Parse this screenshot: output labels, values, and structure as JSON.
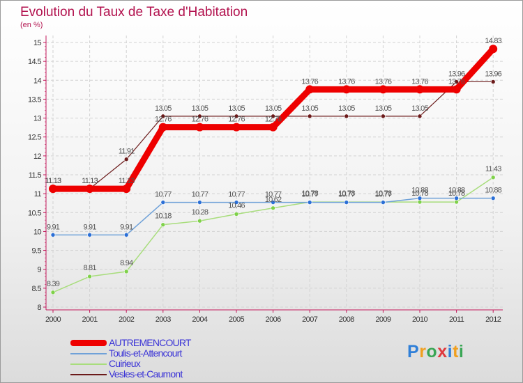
{
  "title": "Evolution du Taux de Taxe d'Habitation",
  "unit": "(en %)",
  "logo": {
    "chars": [
      "P",
      "r",
      "o",
      "x",
      "i",
      "t",
      "i"
    ],
    "colors": [
      "#2f7fd8",
      "#f0a020",
      "#3aa655",
      "#e0393e",
      "#2f7fd8",
      "#f0a020",
      "#3aa655"
    ]
  },
  "chart_data": {
    "type": "line",
    "title": "Evolution du Taux de Taxe d'Habitation",
    "ylabel": "(en %)",
    "xlabel": "",
    "x": [
      "2000",
      "2001",
      "2002",
      "2003",
      "2004",
      "2005",
      "2006",
      "2007",
      "2008",
      "2009",
      "2010",
      "2011",
      "2012"
    ],
    "ylim": [
      8,
      15
    ],
    "yticks": [
      "8",
      "8.5",
      "9",
      "9.5",
      "10",
      "10.5",
      "11",
      "11.5",
      "12",
      "12.5",
      "13",
      "13.5",
      "14",
      "14.5",
      "15"
    ],
    "legend_position": "bottom-left",
    "series": [
      {
        "name": "Vesles-et-Caumont",
        "color": "#6b1a1a",
        "values": [
          11.13,
          11.13,
          11.91,
          13.05,
          13.05,
          13.05,
          13.05,
          13.05,
          13.05,
          13.05,
          13.05,
          13.96,
          13.96
        ],
        "labels": [
          "11.13",
          "11.13",
          "11.91",
          "13.05",
          "13.05",
          "13.05",
          "13.05",
          "13.05",
          "13.05",
          "13.05",
          "13.05",
          "13.96",
          "13.96"
        ]
      },
      {
        "name": "Cuirieux",
        "color": "#a8dd7c",
        "values": [
          8.39,
          8.81,
          8.94,
          10.18,
          10.28,
          10.46,
          10.62,
          10.78,
          10.78,
          10.78,
          10.78,
          10.78,
          11.43
        ],
        "labels": [
          "8.39",
          "8.81",
          "8.94",
          "10.18",
          "10.28",
          "10.46",
          "10.62",
          "10.78",
          "10.78",
          "10.78",
          "10.78",
          "10.78",
          "11.43"
        ]
      },
      {
        "name": "Toulis-et-Attencourt",
        "color": "#6fa1d8",
        "values": [
          9.91,
          9.91,
          9.91,
          10.77,
          10.77,
          10.77,
          10.77,
          10.77,
          10.77,
          10.77,
          10.88,
          10.88,
          10.88
        ],
        "labels": [
          "9.91",
          "9.91",
          "9.91",
          "10.77",
          "10.77",
          "10.77",
          "10.77",
          "10.77",
          "10.77",
          "10.77",
          "10.88",
          "10.88",
          "10.88"
        ]
      },
      {
        "name": "AUTREMENCOURT",
        "color": "#ee0000",
        "values": [
          11.13,
          11.13,
          11.13,
          12.76,
          12.76,
          12.76,
          12.76,
          13.76,
          13.76,
          13.76,
          13.76,
          13.76,
          14.83
        ],
        "labels": [
          "11.13",
          "11.13",
          "11.13",
          "12.76",
          "12.76",
          "12.76",
          "12.76",
          "13.76",
          "13.76",
          "13.76",
          "13.76",
          "13.76",
          "14.83"
        ]
      }
    ],
    "legend": [
      "AUTREMENCOURT",
      "Toulis-et-Attencourt",
      "Cuirieux",
      "Vesles-et-Caumont"
    ]
  }
}
